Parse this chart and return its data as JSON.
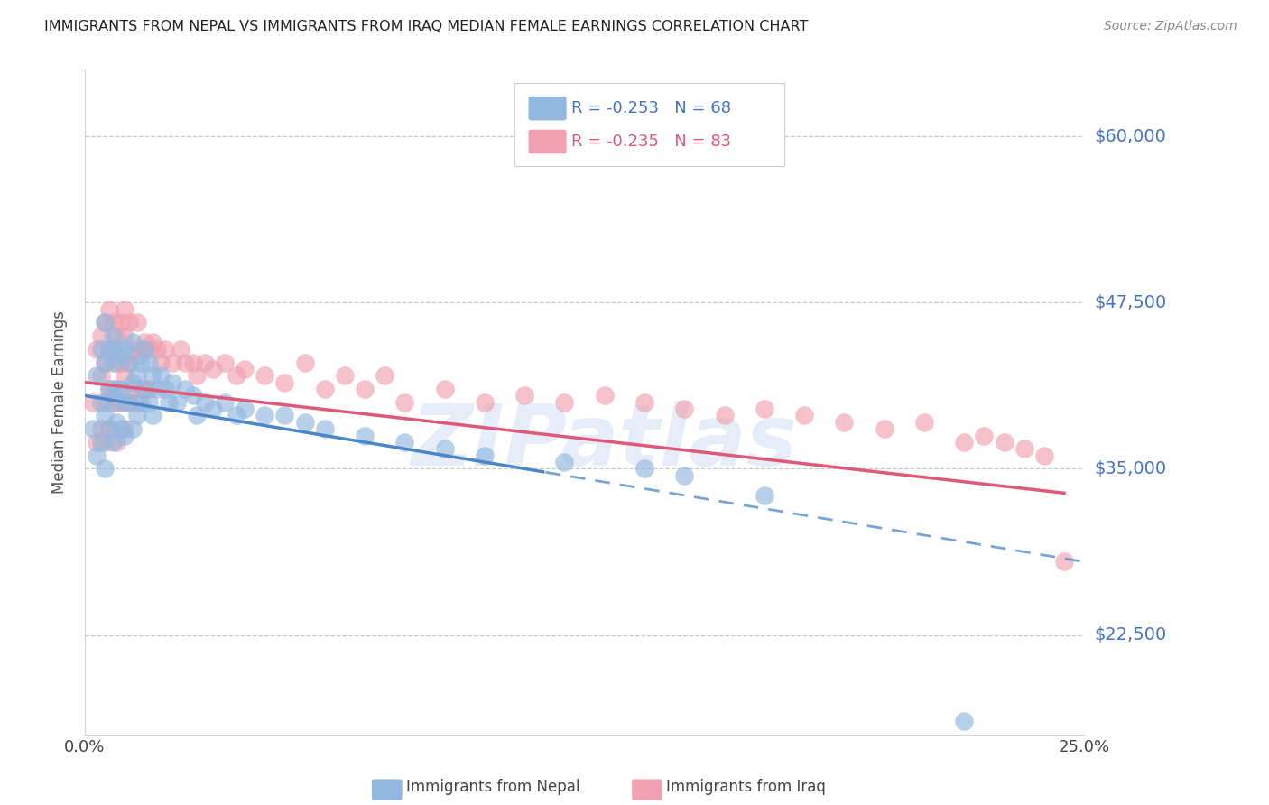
{
  "title": "IMMIGRANTS FROM NEPAL VS IMMIGRANTS FROM IRAQ MEDIAN FEMALE EARNINGS CORRELATION CHART",
  "source": "Source: ZipAtlas.com",
  "ylabel": "Median Female Earnings",
  "xlim": [
    0.0,
    0.25
  ],
  "ylim": [
    15000,
    65000
  ],
  "yticks": [
    22500,
    35000,
    47500,
    60000
  ],
  "ytick_labels": [
    "$22,500",
    "$35,000",
    "$47,500",
    "$60,000"
  ],
  "xtick_positions": [
    0.0,
    0.05,
    0.1,
    0.15,
    0.2,
    0.25
  ],
  "xtick_labels": [
    "0.0%",
    "",
    "",
    "",
    "",
    "25.0%"
  ],
  "nepal_R": -0.253,
  "nepal_N": 68,
  "iraq_R": -0.235,
  "iraq_N": 83,
  "nepal_color": "#92b8e0",
  "iraq_color": "#f0a0b0",
  "nepal_line_color": "#4a86c8",
  "iraq_line_color": "#e05878",
  "watermark": "ZIPatlas",
  "nepal_x": [
    0.002,
    0.003,
    0.003,
    0.004,
    0.004,
    0.004,
    0.005,
    0.005,
    0.005,
    0.005,
    0.006,
    0.006,
    0.006,
    0.007,
    0.007,
    0.007,
    0.007,
    0.008,
    0.008,
    0.008,
    0.009,
    0.009,
    0.009,
    0.01,
    0.01,
    0.01,
    0.011,
    0.011,
    0.012,
    0.012,
    0.012,
    0.013,
    0.013,
    0.014,
    0.014,
    0.015,
    0.015,
    0.016,
    0.016,
    0.017,
    0.017,
    0.018,
    0.019,
    0.02,
    0.021,
    0.022,
    0.023,
    0.025,
    0.027,
    0.028,
    0.03,
    0.032,
    0.035,
    0.038,
    0.04,
    0.045,
    0.05,
    0.055,
    0.06,
    0.07,
    0.08,
    0.09,
    0.1,
    0.12,
    0.14,
    0.15,
    0.17,
    0.22
  ],
  "nepal_y": [
    38000,
    42000,
    36000,
    40000,
    44000,
    37000,
    43000,
    39000,
    46000,
    35000,
    44000,
    41000,
    38000,
    45000,
    43000,
    40000,
    37000,
    44000,
    41000,
    38500,
    43500,
    41000,
    38000,
    44000,
    40000,
    37500,
    43000,
    40000,
    44500,
    41500,
    38000,
    42000,
    39000,
    43000,
    40000,
    44000,
    41000,
    43000,
    40000,
    42000,
    39000,
    41000,
    42000,
    41000,
    40000,
    41500,
    40000,
    41000,
    40500,
    39000,
    40000,
    39500,
    40000,
    39000,
    39500,
    39000,
    39000,
    38500,
    38000,
    37500,
    37000,
    36500,
    36000,
    35500,
    35000,
    34500,
    33000,
    16000
  ],
  "iraq_x": [
    0.002,
    0.003,
    0.003,
    0.004,
    0.004,
    0.004,
    0.005,
    0.005,
    0.005,
    0.005,
    0.006,
    0.006,
    0.006,
    0.006,
    0.007,
    0.007,
    0.007,
    0.008,
    0.008,
    0.008,
    0.008,
    0.009,
    0.009,
    0.009,
    0.01,
    0.01,
    0.01,
    0.01,
    0.011,
    0.011,
    0.011,
    0.012,
    0.012,
    0.013,
    0.013,
    0.013,
    0.014,
    0.014,
    0.015,
    0.015,
    0.016,
    0.016,
    0.017,
    0.018,
    0.019,
    0.02,
    0.022,
    0.024,
    0.025,
    0.027,
    0.028,
    0.03,
    0.032,
    0.035,
    0.038,
    0.04,
    0.045,
    0.05,
    0.055,
    0.06,
    0.065,
    0.07,
    0.075,
    0.08,
    0.09,
    0.1,
    0.11,
    0.12,
    0.13,
    0.14,
    0.15,
    0.16,
    0.17,
    0.18,
    0.19,
    0.2,
    0.21,
    0.22,
    0.225,
    0.23,
    0.235,
    0.24,
    0.245
  ],
  "iraq_y": [
    40000,
    44000,
    37000,
    45000,
    42000,
    38000,
    46000,
    43000,
    40000,
    37000,
    47000,
    44000,
    41000,
    38000,
    46000,
    44000,
    41000,
    45000,
    43000,
    40000,
    37000,
    46000,
    43000,
    40000,
    47000,
    45000,
    42000,
    38000,
    46000,
    43000,
    40000,
    44000,
    41000,
    46000,
    43500,
    40000,
    44000,
    41000,
    44500,
    41000,
    44000,
    41000,
    44500,
    44000,
    43000,
    44000,
    43000,
    44000,
    43000,
    43000,
    42000,
    43000,
    42500,
    43000,
    42000,
    42500,
    42000,
    41500,
    43000,
    41000,
    42000,
    41000,
    42000,
    40000,
    41000,
    40000,
    40500,
    40000,
    40500,
    40000,
    39500,
    39000,
    39500,
    39000,
    38500,
    38000,
    38500,
    37000,
    37500,
    37000,
    36500,
    36000,
    28000
  ]
}
